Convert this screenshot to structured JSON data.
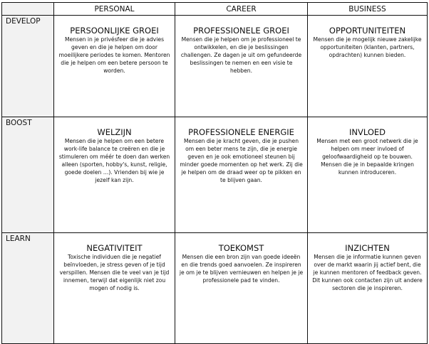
{
  "columns": [
    "PERSONAL",
    "CAREER",
    "BUSINESS"
  ],
  "rows": [
    {
      "label": "DEVELOP",
      "cells": [
        {
          "title": "PERSOONLIJKE GROEI",
          "body": "Mensen in je privésfeer die je advies geven en die je helpen om door moeilijkere periodes te komen. Mentoren die je helpen om een betere persoon te worden."
        },
        {
          "title": "PROFESSIONELE GROEI",
          "body": "Mensen die je helpen om je professioneel te ontwikkelen, en die je beslissingen challengen. Ze dagen je uit om gefundeerde beslissingen te nemen en een visie te hebben."
        },
        {
          "title": "OPPORTUNITEITEN",
          "body": "Mensen die je mogelijk nieuwe zakelijke opportuniteiten (klanten, partners, opdrachten) kunnen bieden."
        }
      ]
    },
    {
      "label": "BOOST",
      "cells": [
        {
          "title": "WELZIJN",
          "body": "Mensen die je helpen om een betere work-life balance te creëren en die je stimuleren om méér te doen dan werken alleen (sporten, hobby's, kunst, religie, goede doelen …). Vrienden bij wie je jezelf kan zijn."
        },
        {
          "title": "PROFESSIONELE ENERGIE",
          "body": "Mensen die je kracht geven, die je pushen om een beter mens te zijn, die je energie geven en je ook emotioneel steunen bij minder goede momenten op het werk. Zij die je helpen om de draad weer op te pikken en te blijven gaan."
        },
        {
          "title": "INVLOED",
          "body": "Mensen met een groot netwerk die je helpen om meer invloed of geloofwaardigheid op te bouwen. Mensen die je in bepaalde kringen kunnen introduceren."
        }
      ]
    },
    {
      "label": "LEARN",
      "cells": [
        {
          "title": "NEGATIVITEIT",
          "body": "Toxische individuen die je negatief beïnvloeden, je stress geven of je tijd verspillen. Mensen die te veel van je tijd innemen, terwijl dat eigenlijk niet zou mogen of nodig is."
        },
        {
          "title": "TOEKOMST",
          "body": "Mensen die een bron zijn van goede ideeën en die trends goed aanvoelen. Ze inspireren je om je te blijven vernieuwen en helpen je je professionele pad te vinden."
        },
        {
          "title": "INZICHTEN",
          "body": "Mensen die je informatie kunnen geven over de markt waarin jij actief bent, die je kunnen mentoren of feedback geven. Dit kunnen ook contacten zijn uit andere sectoren die je inspireren."
        }
      ]
    }
  ]
}
